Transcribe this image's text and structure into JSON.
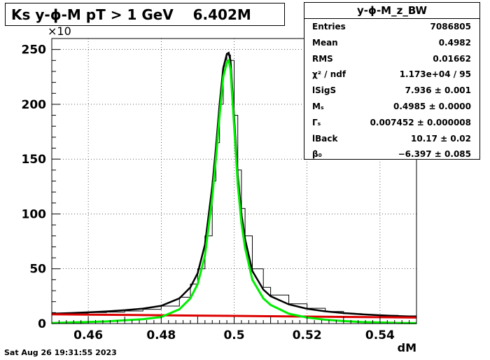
{
  "title": "Ks y-ϕ-M pT > 1 GeV    6.402M",
  "footer": "Sat Aug 26 19:31:55 2023",
  "stats": {
    "name": "y-ϕ-M_z_BW",
    "rows": [
      {
        "key": "Entries",
        "value": "7086805"
      },
      {
        "key": "Mean",
        "value": "0.4982"
      },
      {
        "key": "RMS",
        "value": "0.01662"
      },
      {
        "key": "χ² / ndf",
        "value": "1.173e+04 / 95"
      },
      {
        "key": "lSigS",
        "value": "7.936 ± 0.001"
      },
      {
        "key": "Mₛ",
        "value": "0.4985 ± 0.0000"
      },
      {
        "key": "Γₛ",
        "value": "0.007452 ± 0.000008"
      },
      {
        "key": "lBack",
        "value": "10.17 ± 0.02"
      },
      {
        "key": "β₀",
        "value": "−6.397 ± 0.085"
      }
    ]
  },
  "colors": {
    "histogram": "#000000",
    "total_fit": "#000000",
    "signal": "#00ee00",
    "background": "#dd0000",
    "grid": "#000000"
  },
  "chart_data": {
    "type": "line",
    "xlabel": "dM",
    "ylabel": "",
    "y_multiplier": "×10",
    "xlim": [
      0.45,
      0.55
    ],
    "ylim": [
      0,
      260
    ],
    "xticks": [
      0.46,
      0.48,
      0.5,
      0.52,
      0.54
    ],
    "xtick_labels": [
      "0.46",
      "0.48",
      "0.5",
      "0.52",
      "0.54"
    ],
    "yticks": [
      0,
      50,
      100,
      150,
      200,
      250
    ],
    "ytick_labels": [
      "0",
      "50",
      "100",
      "150",
      "200",
      "250"
    ],
    "grid": true,
    "series": [
      {
        "key": "histogram",
        "x": [
          0.45,
          0.455,
          0.46,
          0.465,
          0.47,
          0.475,
          0.48,
          0.485,
          0.488,
          0.49,
          0.492,
          0.494,
          0.495,
          0.496,
          0.497,
          0.498,
          0.4985,
          0.499,
          0.5,
          0.501,
          0.502,
          0.503,
          0.505,
          0.508,
          0.51,
          0.515,
          0.52,
          0.525,
          0.53,
          0.535,
          0.54,
          0.545,
          0.55
        ],
        "y": [
          9,
          9.5,
          10,
          10.5,
          11.5,
          13,
          16,
          24,
          36,
          50,
          80,
          130,
          165,
          200,
          235,
          245,
          245,
          240,
          190,
          140,
          105,
          80,
          50,
          33,
          26,
          18,
          14,
          11,
          9,
          8,
          7.5,
          7,
          6
        ]
      },
      {
        "key": "total_fit",
        "x": [
          0.45,
          0.455,
          0.46,
          0.465,
          0.47,
          0.475,
          0.48,
          0.485,
          0.488,
          0.49,
          0.492,
          0.494,
          0.495,
          0.496,
          0.497,
          0.498,
          0.4985,
          0.499,
          0.5,
          0.501,
          0.502,
          0.503,
          0.505,
          0.508,
          0.51,
          0.515,
          0.52,
          0.525,
          0.53,
          0.535,
          0.54,
          0.545,
          0.55
        ],
        "y": [
          9,
          9.6,
          10.3,
          11.1,
          12.2,
          13.7,
          16.2,
          23,
          33,
          46,
          72,
          125,
          160,
          200,
          233,
          246,
          247,
          240,
          188,
          135,
          100,
          77,
          48,
          31,
          25,
          17.5,
          13.5,
          11.2,
          9.6,
          8.5,
          7.6,
          6.9,
          6.3
        ]
      },
      {
        "key": "signal",
        "x": [
          0.45,
          0.455,
          0.46,
          0.465,
          0.47,
          0.475,
          0.48,
          0.485,
          0.488,
          0.49,
          0.492,
          0.494,
          0.495,
          0.496,
          0.497,
          0.498,
          0.4985,
          0.499,
          0.5,
          0.501,
          0.502,
          0.503,
          0.505,
          0.508,
          0.51,
          0.515,
          0.52,
          0.525,
          0.53,
          0.535,
          0.54,
          0.545,
          0.55
        ],
        "y": [
          0.5,
          1,
          1.5,
          2,
          3,
          4,
          6,
          13,
          23,
          36,
          62,
          115,
          150,
          190,
          225,
          238,
          240,
          232,
          180,
          127,
          92,
          69,
          40,
          23,
          17,
          9,
          5.5,
          3.5,
          2.3,
          1.5,
          1,
          0.6,
          0.4
        ]
      },
      {
        "key": "background",
        "x": [
          0.45,
          0.46,
          0.47,
          0.48,
          0.49,
          0.5,
          0.51,
          0.52,
          0.53,
          0.54,
          0.55
        ],
        "y": [
          8.5,
          8.2,
          7.9,
          7.6,
          7.3,
          7.0,
          6.7,
          6.4,
          6.1,
          5.8,
          5.5
        ]
      }
    ]
  }
}
